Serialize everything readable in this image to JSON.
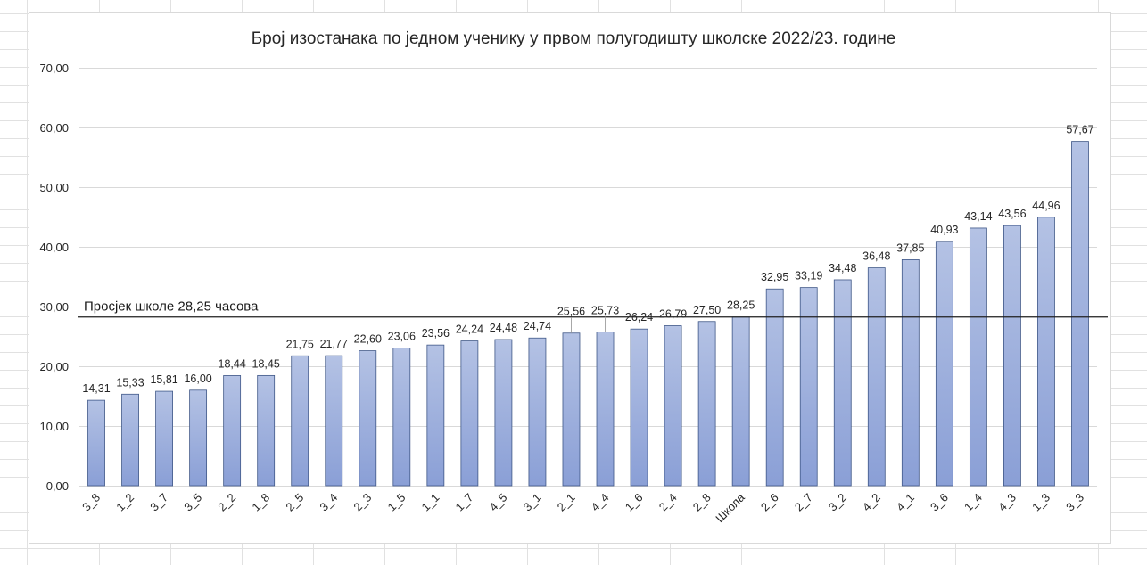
{
  "chart_data": {
    "type": "bar",
    "title": "Број изостанака по једном ученику у првом полугодишту школске 2022/23. године",
    "xlabel": "",
    "ylabel": "",
    "ylim": [
      0,
      70
    ],
    "y_ticks": [
      "0,00",
      "10,00",
      "20,00",
      "30,00",
      "40,00",
      "50,00",
      "60,00",
      "70,00"
    ],
    "grid": true,
    "legend": "none",
    "categories": [
      "3_8",
      "1_2",
      "3_7",
      "3_5",
      "2_2",
      "1_8",
      "2_5",
      "3_4",
      "2_3",
      "1_5",
      "1_1",
      "1_7",
      "4_5",
      "3_1",
      "2_1",
      "4_4",
      "1_6",
      "2_4",
      "2_8",
      "Школа",
      "2_6",
      "2_7",
      "3_2",
      "4_2",
      "4_1",
      "3_6",
      "1_4",
      "4_3",
      "1_3",
      "3_3"
    ],
    "values": [
      14.31,
      15.33,
      15.81,
      16.0,
      18.44,
      18.45,
      21.75,
      21.77,
      22.6,
      23.06,
      23.56,
      24.24,
      24.48,
      24.74,
      25.56,
      25.73,
      26.24,
      26.79,
      27.5,
      28.25,
      32.95,
      33.19,
      34.48,
      36.48,
      37.85,
      40.93,
      43.14,
      43.56,
      44.96,
      57.67
    ],
    "value_labels": [
      "14,31",
      "15,33",
      "15,81",
      "16,00",
      "18,44",
      "18,45",
      "21,75",
      "21,77",
      "22,60",
      "23,06",
      "23,56",
      "24,24",
      "24,48",
      "24,74",
      "25,56",
      "25,73",
      "26,24",
      "26,79",
      "27,50",
      "28,25",
      "32,95",
      "33,19",
      "34,48",
      "36,48",
      "37,85",
      "40,93",
      "43,14",
      "43,56",
      "44,96",
      "57,67"
    ],
    "reference_line": {
      "value": 28.25,
      "label": "Просјек школе 28,25 часова"
    },
    "colors": {
      "bar_top": "#b4c2e4",
      "bar_bottom": "#8a9fd6",
      "bar_stroke": "#3f5787",
      "grid": "#d9d9d9",
      "line": "#1f1f1f",
      "text": "#262626"
    }
  }
}
